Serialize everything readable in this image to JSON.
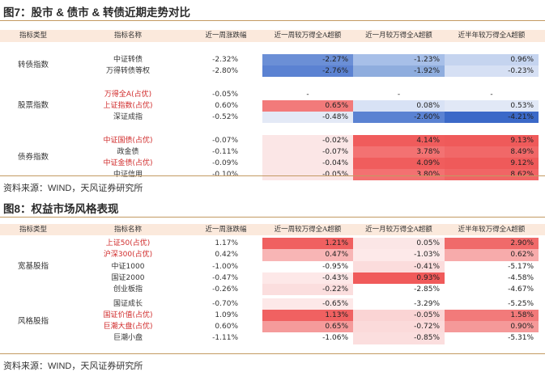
{
  "fig7": {
    "title": "图7：股市 & 债市 & 转债近期走势对比",
    "headers": [
      "指标类型",
      "指标名称",
      "近一周涨跌幅",
      "近一周较万得全A超额",
      "近一月较万得全A超额",
      "近半年较万得全A超额"
    ],
    "groups": [
      {
        "category": "转债指数",
        "rows": [
          {
            "name": "中证转债",
            "name_color": "black",
            "week": "-2.32%",
            "vals": [
              "-2.27%",
              "-1.23%",
              "0.96%"
            ],
            "colors": [
              "#6b8fd6",
              "#a7bfe8",
              "#c5d4ef"
            ]
          },
          {
            "name": "万得转债等权",
            "name_color": "black",
            "week": "-2.80%",
            "vals": [
              "-2.76%",
              "-1.92%",
              "-0.23%"
            ],
            "colors": [
              "#5b82d2",
              "#8fadde",
              "#d6e0f4"
            ]
          }
        ]
      },
      {
        "category": "股票指数",
        "rows": [
          {
            "name": "万得全A(占优)",
            "name_color": "red",
            "week": "-0.05%",
            "vals": [
              "-",
              "-",
              "-"
            ],
            "colors": [
              "#ffffff",
              "#ffffff",
              "#ffffff"
            ]
          },
          {
            "name": "上证指数(占优)",
            "name_color": "red",
            "week": "0.60%",
            "vals": [
              "0.65%",
              "0.08%",
              "0.53%"
            ],
            "colors": [
              "#f27a7a",
              "#d8e2f5",
              "#e1e8f6"
            ]
          },
          {
            "name": "深证成指",
            "name_color": "black",
            "week": "-0.52%",
            "vals": [
              "-0.48%",
              "-2.60%",
              "-4.21%"
            ],
            "colors": [
              "#e3e9f6",
              "#5a82d2",
              "#3b69c8"
            ]
          }
        ]
      },
      {
        "category": "债券指数",
        "rows": [
          {
            "name": "中证国债(占优)",
            "name_color": "red",
            "week": "-0.07%",
            "vals": [
              "-0.02%",
              "4.14%",
              "9.13%"
            ],
            "colors": [
              "#fbe6e6",
              "#f05c5c",
              "#ef5a5a"
            ]
          },
          {
            "name": "政金债",
            "name_color": "black",
            "week": "-0.11%",
            "vals": [
              "-0.07%",
              "3.78%",
              "8.49%"
            ],
            "colors": [
              "#fbe6e6",
              "#f37272",
              "#f16868"
            ]
          },
          {
            "name": "中证金债(占优)",
            "name_color": "red",
            "week": "-0.09%",
            "vals": [
              "-0.04%",
              "4.09%",
              "9.12%"
            ],
            "colors": [
              "#fbe6e6",
              "#f05d5d",
              "#ef5a5a"
            ]
          },
          {
            "name": "中证信用",
            "name_color": "black",
            "week": "-0.10%",
            "vals": [
              "-0.05%",
              "3.80%",
              "8.62%"
            ],
            "colors": [
              "#fbe6e6",
              "#f37171",
              "#f16565"
            ]
          }
        ]
      }
    ],
    "source": "资料来源：WIND，天风证券研究所"
  },
  "fig8": {
    "title": "图8：权益市场风格表现",
    "headers": [
      "指标类型",
      "指标名称",
      "近一周涨跌幅",
      "近一周较万得全A超额",
      "近一月较万得全A超额",
      "近半年较万得全A超额"
    ],
    "groups": [
      {
        "category": "宽基股指",
        "rows": [
          {
            "name": "上证50(占优)",
            "name_color": "red",
            "week": "1.17%",
            "vals": [
              "1.21%",
              "0.05%",
              "2.90%"
            ],
            "colors": [
              "#f06060",
              "#fbe6e6",
              "#f06a6a"
            ]
          },
          {
            "name": "沪深300(占优)",
            "name_color": "red",
            "week": "0.42%",
            "vals": [
              "0.47%",
              "-1.03%",
              "0.62%"
            ],
            "colors": [
              "#f8b5b5",
              "#fde9e9",
              "#f7abab"
            ]
          },
          {
            "name": "中证1000",
            "name_color": "black",
            "week": "-1.00%",
            "vals": [
              "-0.95%",
              "-0.41%",
              "-5.17%"
            ],
            "colors": [
              "#ffffff",
              "#fbdcdc",
              "#ffffff"
            ]
          },
          {
            "name": "国证2000",
            "name_color": "black",
            "week": "-0.47%",
            "vals": [
              "-0.43%",
              "0.93%",
              "-4.58%"
            ],
            "colors": [
              "#fde8e8",
              "#f05a5a",
              "#ffffff"
            ]
          },
          {
            "name": "创业板指",
            "name_color": "black",
            "week": "-0.26%",
            "vals": [
              "-0.22%",
              "-2.85%",
              "-4.67%"
            ],
            "colors": [
              "#fbdede",
              "#ffffff",
              "#ffffff"
            ]
          }
        ]
      },
      {
        "category": "风格股指",
        "rows": [
          {
            "name": "国证成长",
            "name_color": "black",
            "week": "-0.70%",
            "vals": [
              "-0.65%",
              "-3.29%",
              "-5.25%"
            ],
            "colors": [
              "#fde8e8",
              "#ffffff",
              "#ffffff"
            ]
          },
          {
            "name": "国证价值(占优)",
            "name_color": "red",
            "week": "1.09%",
            "vals": [
              "1.13%",
              "-0.05%",
              "1.58%"
            ],
            "colors": [
              "#f06161",
              "#fad4d4",
              "#f27a7a"
            ]
          },
          {
            "name": "巨潮大盘(占优)",
            "name_color": "red",
            "week": "0.60%",
            "vals": [
              "0.65%",
              "-0.72%",
              "0.90%"
            ],
            "colors": [
              "#f59b9b",
              "#fbdada",
              "#f59999"
            ]
          },
          {
            "name": "巨潮小盘",
            "name_color": "black",
            "week": "-1.11%",
            "vals": [
              "-1.06%",
              "-0.85%",
              "-5.31%"
            ],
            "colors": [
              "#ffffff",
              "#fbdede",
              "#ffffff"
            ]
          }
        ]
      }
    ],
    "source": "资料来源：WIND，天风证券研究所"
  }
}
